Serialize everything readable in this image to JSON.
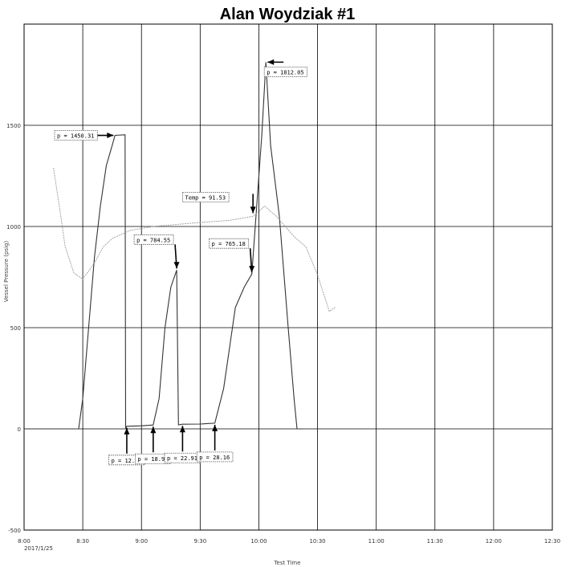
{
  "chart_data": {
    "type": "line",
    "title": "Alan Woydziak #1",
    "xlabel": "Test Time",
    "ylabel_left": "Vessel Pressure (psig)",
    "ylabel_right": "",
    "x_ticks": [
      "8:00",
      "8:30",
      "9:00",
      "9:30",
      "10:00",
      "10:30",
      "11:00",
      "11:30",
      "12:00",
      "12:30"
    ],
    "x_date": "2017/1/25",
    "y_ticks": [
      "1500",
      "1000",
      "500",
      "0",
      "-500"
    ],
    "y_right_ticks": [
      "",
      "",
      "",
      "",
      ""
    ],
    "xlim": [
      "8:00",
      "12:30"
    ],
    "ylim": [
      -500,
      2000
    ],
    "grid": true,
    "colors": {
      "pressure": "#333333",
      "temp": "#9a9a9a",
      "grid": "#000000",
      "arrow": "#000000"
    },
    "series": [
      {
        "key": "pressure",
        "name": "",
        "points": [
          [
            0.0,
            0
          ],
          [
            0.25,
            0
          ],
          [
            0.5,
            0
          ],
          [
            0.93,
            0
          ],
          [
            1.0,
            150
          ],
          [
            1.1,
            500
          ],
          [
            1.2,
            850
          ],
          [
            1.3,
            1100
          ],
          [
            1.4,
            1300
          ],
          [
            1.5,
            1400
          ],
          [
            1.55,
            1450.31
          ],
          [
            1.72,
            1453
          ],
          [
            1.73,
            0
          ],
          [
            1.75,
            12.64
          ],
          [
            2.0,
            15
          ],
          [
            2.2,
            18.97
          ],
          [
            2.3,
            150
          ],
          [
            2.4,
            500
          ],
          [
            2.5,
            700
          ],
          [
            2.6,
            784.55
          ],
          [
            2.63,
            20
          ],
          [
            2.7,
            22.91
          ],
          [
            3.0,
            24
          ],
          [
            3.25,
            28.16
          ],
          [
            3.4,
            200
          ],
          [
            3.5,
            400
          ],
          [
            3.6,
            600
          ],
          [
            3.75,
            700
          ],
          [
            3.88,
            765.18
          ],
          [
            4.05,
            1450
          ],
          [
            4.12,
            1812.05
          ],
          [
            4.2,
            1400
          ],
          [
            4.35,
            1050
          ],
          [
            4.5,
            500
          ],
          [
            4.6,
            150
          ],
          [
            4.65,
            0
          ],
          [
            4.75,
            0
          ]
        ]
      },
      {
        "key": "temp",
        "name": "",
        "points": [
          [
            0.5,
            1290
          ],
          [
            0.6,
            1100
          ],
          [
            0.7,
            900
          ],
          [
            0.85,
            770
          ],
          [
            1.0,
            740
          ],
          [
            1.2,
            820
          ],
          [
            1.35,
            900
          ],
          [
            1.5,
            940
          ],
          [
            1.65,
            960
          ],
          [
            1.8,
            980
          ],
          [
            2.2,
            1000
          ],
          [
            2.6,
            1010
          ],
          [
            3.0,
            1020
          ],
          [
            3.5,
            1030
          ],
          [
            3.9,
            1050
          ],
          [
            4.1,
            1100
          ],
          [
            4.3,
            1050
          ],
          [
            4.45,
            1000
          ],
          [
            4.6,
            950
          ],
          [
            4.8,
            900
          ],
          [
            5.0,
            760
          ],
          [
            5.2,
            580
          ],
          [
            5.3,
            600
          ]
        ]
      }
    ],
    "annotations": [
      {
        "text": "p = 1450.31",
        "x": 1.55,
        "y": 1450.31
      },
      {
        "text": "Temp = 91.53",
        "x": 3.9,
        "y": 1050
      },
      {
        "text": "p = 1812.05",
        "x": 4.12,
        "y": 1812.05
      },
      {
        "text": "p = 784.55",
        "x": 2.6,
        "y": 784.55
      },
      {
        "text": "p = 765.18",
        "x": 3.88,
        "y": 765.18
      },
      {
        "text": "p = 12.64",
        "x": 1.75,
        "y": 12.64
      },
      {
        "text": "p = 18.97",
        "x": 2.2,
        "y": 18.97
      },
      {
        "text": "p = 22.91",
        "x": 2.7,
        "y": 22.91
      },
      {
        "text": "p = 28.16",
        "x": 3.25,
        "y": 28.16
      }
    ]
  }
}
